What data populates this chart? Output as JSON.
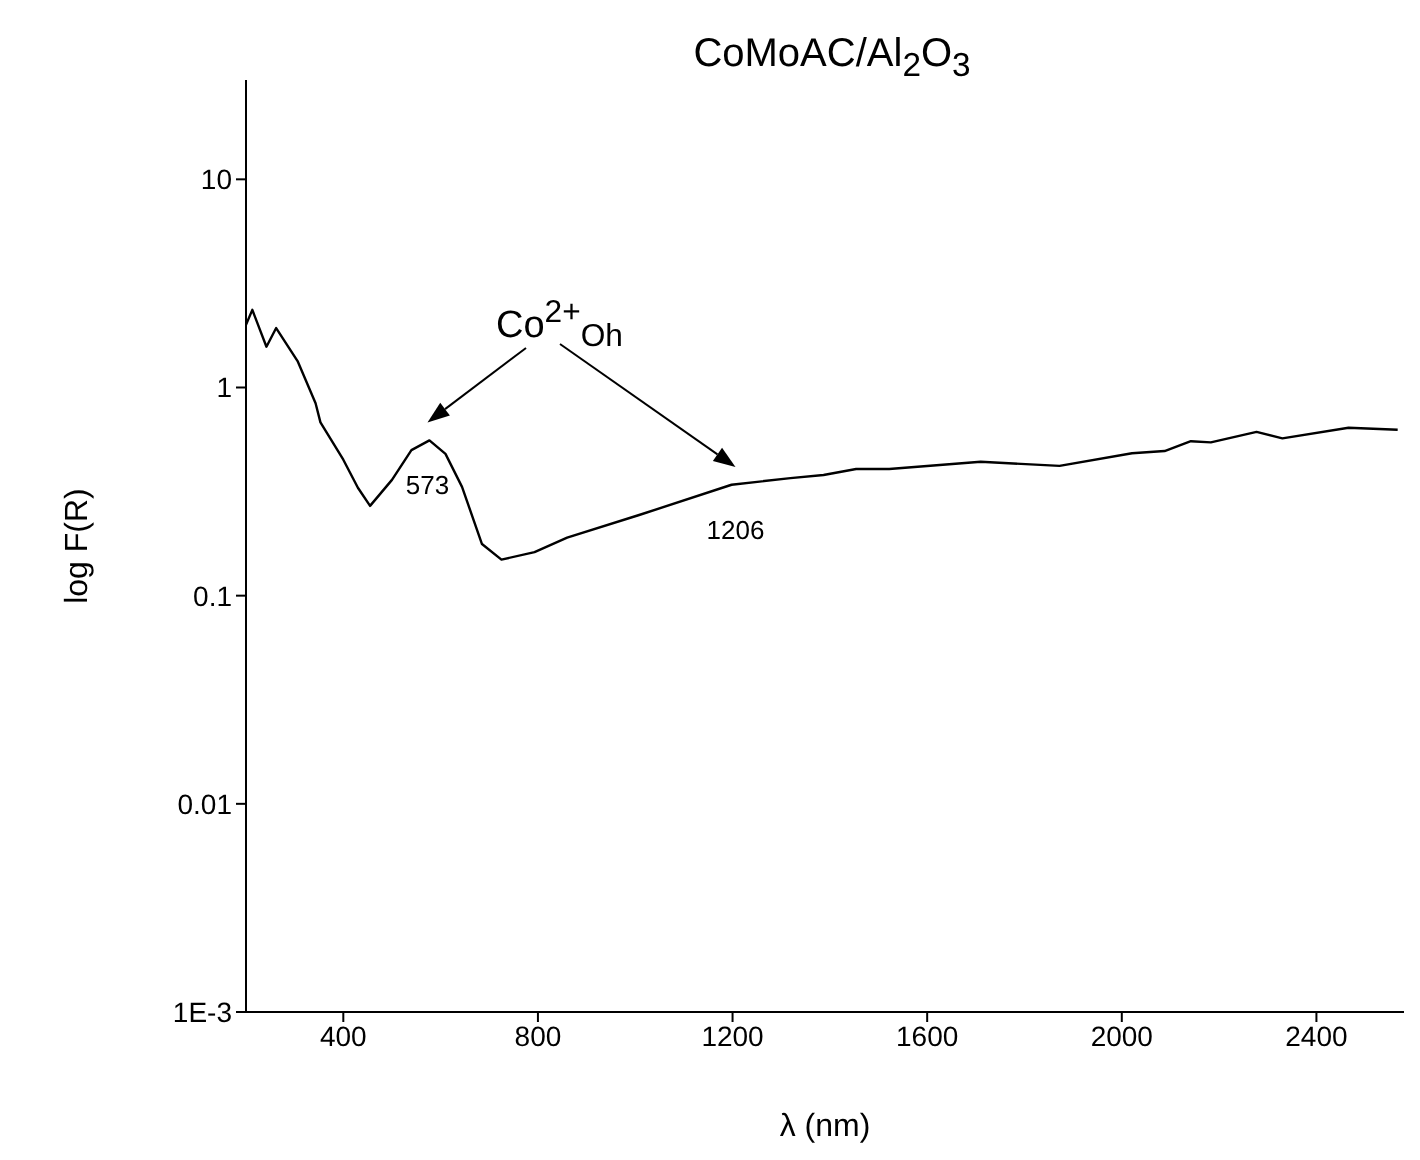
{
  "chart_data": {
    "type": "line",
    "title": "CoMoAC/Al$_{2}$O$_{3}$",
    "xlabel": "λ (nm)",
    "ylabel": "log F(R)",
    "log": "y",
    "xlim": [
      200,
      2580
    ],
    "xticks": [
      400,
      800,
      1200,
      1600,
      2000,
      2400
    ],
    "ylim": [
      0.001,
      30
    ],
    "yticks": [
      {
        "value": 0.001,
        "label": "1E-3"
      },
      0.01,
      0.1,
      1,
      10
    ],
    "annotations": [
      "Co$^{2+}$$_{Oh}$",
      {
        "text": "573",
        "x": 573,
        "y": 0.557
      },
      {
        "text": "1206",
        "x": 1206,
        "y": 0.34
      }
    ],
    "series": [
      {
        "color": "#000000",
        "x": [
          200,
          213,
          242,
          262,
          306,
          343,
          353,
          400,
          430,
          455,
          500,
          540,
          577,
          610,
          644,
          685,
          725,
          793,
          860,
          1008,
          1198,
          1319,
          1387,
          1454,
          1522,
          1710,
          1872,
          2021,
          2088,
          2142,
          2183,
          2277,
          2330,
          2466,
          2567
        ],
        "values": [
          2.0,
          2.36,
          1.57,
          1.93,
          1.34,
          0.84,
          0.68,
          0.45,
          0.33,
          0.27,
          0.36,
          0.5,
          0.557,
          0.48,
          0.333,
          0.177,
          0.149,
          0.162,
          0.19,
          0.244,
          0.341,
          0.367,
          0.38,
          0.406,
          0.406,
          0.44,
          0.42,
          0.483,
          0.495,
          0.552,
          0.545,
          0.612,
          0.57,
          0.641,
          0.627
        ]
      }
    ]
  }
}
